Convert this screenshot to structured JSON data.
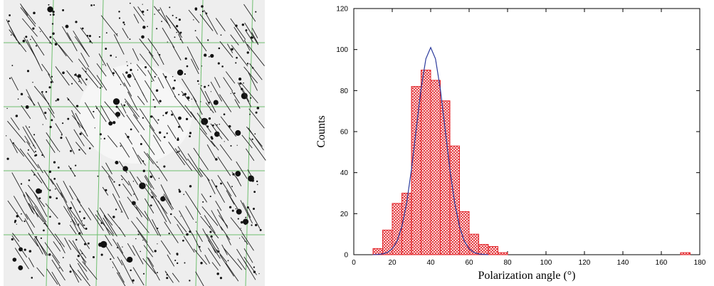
{
  "chart_data": {
    "type": "histogram",
    "xlabel": "Polarization angle (°)",
    "ylabel": "Counts",
    "bins": [
      10,
      15,
      20,
      25,
      30,
      35,
      40,
      45,
      50,
      55,
      60,
      65,
      70,
      75,
      80,
      85,
      90,
      95,
      100,
      105,
      110,
      115,
      120,
      125,
      130,
      135,
      140,
      145,
      150,
      155,
      160,
      165,
      170,
      175
    ],
    "values": [
      3,
      12,
      25,
      30,
      82,
      90,
      85,
      75,
      53,
      21,
      10,
      5,
      4,
      1,
      0,
      0,
      0,
      0,
      0,
      0,
      0,
      0,
      0,
      0,
      0,
      0,
      0,
      0,
      0,
      0,
      0,
      0,
      1
    ],
    "color": "#e3262b",
    "line": {
      "color": "#2b3a9c",
      "x": [
        10,
        12.5,
        15,
        17.5,
        20,
        22.5,
        25,
        27.5,
        30,
        32.5,
        35,
        37.5,
        40,
        42.5,
        45,
        47.5,
        50,
        52.5,
        55,
        57.5,
        60,
        62.5,
        65,
        67.5,
        70
      ],
      "values": [
        0.03,
        0.12,
        0.39,
        1.1,
        2.9,
        6.6,
        13.7,
        25.2,
        41.5,
        61.3,
        80.9,
        95.5,
        101,
        95.5,
        80.9,
        61.3,
        41.5,
        25.2,
        13.7,
        6.6,
        2.9,
        1.1,
        0.39,
        0.12,
        0.03
      ]
    },
    "xlim": [
      0,
      180
    ],
    "xticks": [
      0,
      20,
      40,
      60,
      80,
      100,
      120,
      140,
      160,
      180
    ],
    "ylim": [
      0,
      120
    ],
    "yticks": [
      0,
      20,
      40,
      60,
      80,
      100,
      120
    ]
  }
}
